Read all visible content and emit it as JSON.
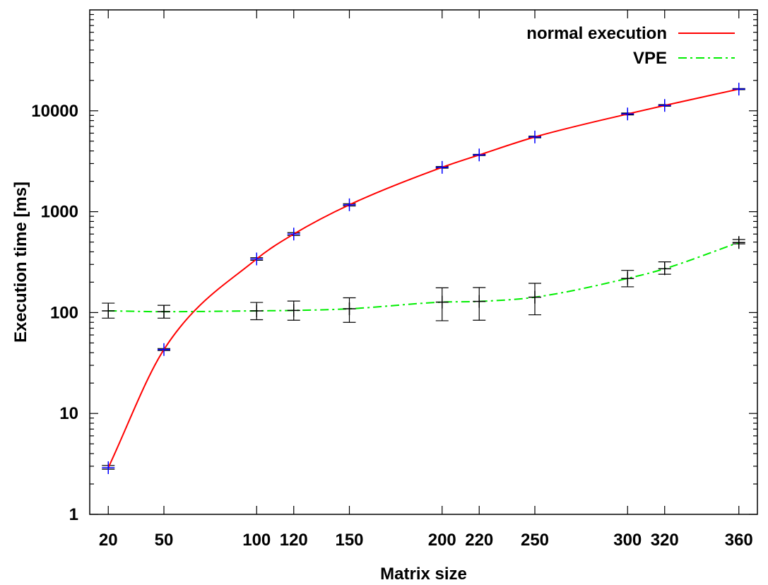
{
  "chart_data": {
    "type": "line",
    "title": "",
    "xlabel": "Matrix size",
    "ylabel": "Execution time [ms]",
    "x_ticks": [
      20,
      50,
      100,
      120,
      150,
      200,
      220,
      250,
      300,
      320,
      360
    ],
    "y_ticks": [
      1,
      10,
      100,
      1000,
      10000
    ],
    "y_tick_labels": [
      "1",
      "10",
      "100",
      "1000",
      "10000"
    ],
    "y_scale": "log",
    "xlim": [
      10,
      370
    ],
    "ylim": [
      1,
      100000
    ],
    "grid": false,
    "legend_position": "top-right",
    "series": [
      {
        "name": "normal execution",
        "color": "#ff0000",
        "line_style": "solid",
        "marker": "plus",
        "marker_color": "#0000ff",
        "x": [
          20,
          50,
          100,
          120,
          150,
          200,
          220,
          250,
          300,
          320,
          360
        ],
        "y": [
          2.9,
          43,
          340,
          600,
          1170,
          2750,
          3650,
          5500,
          9300,
          11300,
          16400
        ],
        "y_low": [
          2.8,
          42,
          330,
          580,
          1140,
          2700,
          3600,
          5400,
          9100,
          11100,
          16200
        ],
        "y_high": [
          3.05,
          44,
          350,
          620,
          1200,
          2800,
          3700,
          5600,
          9500,
          11500,
          16600
        ]
      },
      {
        "name": "VPE",
        "color": "#00ee00",
        "line_style": "dash-dot",
        "marker": "plus",
        "marker_color": "#000000",
        "x": [
          20,
          50,
          100,
          120,
          150,
          200,
          220,
          250,
          300,
          320,
          360
        ],
        "y": [
          104,
          102,
          104,
          105,
          109,
          127,
          129,
          142,
          218,
          272,
          495
        ],
        "y_low": [
          88,
          88,
          85,
          84,
          80,
          83,
          84,
          95,
          180,
          240,
          480
        ],
        "y_high": [
          124,
          118,
          126,
          130,
          140,
          176,
          177,
          195,
          262,
          318,
          530
        ]
      }
    ]
  }
}
